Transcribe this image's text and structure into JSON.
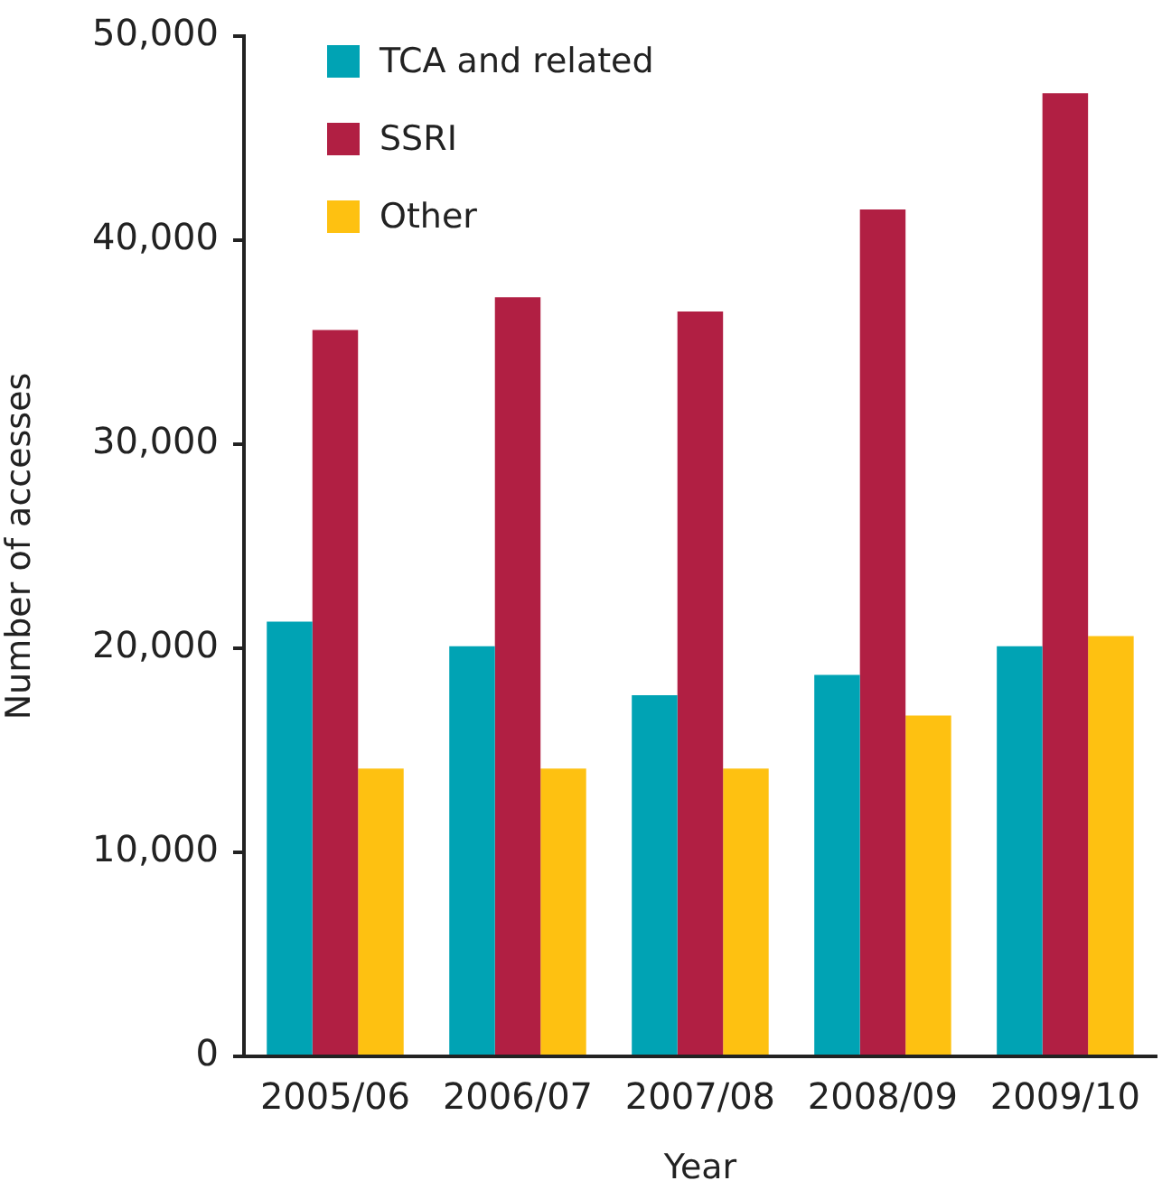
{
  "chart_data": {
    "type": "bar",
    "xlabel": "Year",
    "ylabel": "Number of accesses",
    "categories": [
      "2005/06",
      "2006/07",
      "2007/08",
      "2008/09",
      "2009/10"
    ],
    "series": [
      {
        "name": "TCA and related",
        "color": "#00a3b4",
        "values": [
          21300,
          20100,
          17700,
          18700,
          20100
        ]
      },
      {
        "name": "SSRI",
        "color": "#b11f43",
        "values": [
          35600,
          37200,
          36500,
          41500,
          47200
        ]
      },
      {
        "name": "Other",
        "color": "#fec111",
        "values": [
          14100,
          14100,
          14100,
          16700,
          20600
        ]
      }
    ],
    "ylim": [
      0,
      50000
    ],
    "yticks": [
      {
        "value": 0,
        "label": "0"
      },
      {
        "value": 10000,
        "label": "10,000"
      },
      {
        "value": 20000,
        "label": "20,000"
      },
      {
        "value": 30000,
        "label": "30,000"
      },
      {
        "value": 40000,
        "label": "40,000"
      },
      {
        "value": 50000,
        "label": "50,000"
      }
    ],
    "grid": false,
    "legend": "top left"
  }
}
